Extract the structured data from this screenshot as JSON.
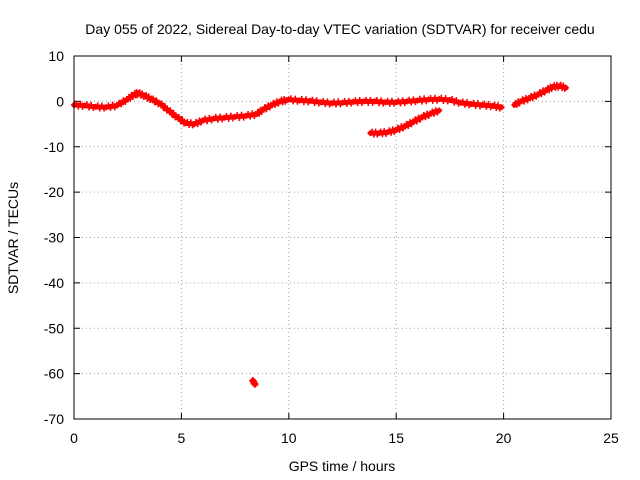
{
  "chart_data": {
    "type": "scatter",
    "title": "Day 055 of 2022, Sidereal Day-to-day VTEC variation (SDTVAR) for receiver cedu",
    "xlabel": "GPS time / hours",
    "ylabel": "SDTVAR / TECUs",
    "xlim": [
      0,
      25
    ],
    "ylim": [
      -70,
      10
    ],
    "xticks": [
      0,
      5,
      10,
      15,
      20,
      25
    ],
    "yticks": [
      10,
      0,
      -10,
      -20,
      -30,
      -40,
      -50,
      -60,
      -70
    ],
    "grid": true,
    "marker": "plus",
    "color": "#ff0000",
    "series": [
      {
        "name": "segment-1",
        "x": [
          0,
          0.5,
          1.0,
          1.5,
          2.0,
          2.5,
          2.8,
          3.0,
          3.3,
          3.6,
          4.0,
          4.4,
          4.8,
          5.2,
          5.6,
          6.0,
          6.5,
          7.0,
          7.5,
          8.0,
          8.5,
          8.8,
          9.2,
          9.6,
          9.9
        ],
        "y": [
          -0.8,
          -0.9,
          -1.2,
          -1.3,
          -0.9,
          0.5,
          1.5,
          1.8,
          1.2,
          0.5,
          -0.5,
          -2,
          -3.5,
          -4.8,
          -5,
          -4.2,
          -3.8,
          -3.6,
          -3.4,
          -3.2,
          -2.8,
          -1.8,
          -0.8,
          0,
          0.3
        ]
      },
      {
        "name": "segment-2",
        "x": [
          10,
          10.5,
          11,
          11.5,
          12,
          12.5,
          13,
          13.5,
          14,
          14.5,
          15,
          15.5,
          16,
          16.5,
          17,
          17.5,
          18,
          18.5,
          19,
          19.5,
          19.9
        ],
        "y": [
          0.4,
          0.2,
          0.1,
          -0.2,
          -0.4,
          -0.3,
          -0.1,
          0,
          0,
          -0.2,
          -0.2,
          0,
          0.2,
          0.4,
          0.5,
          0.3,
          -0.3,
          -0.6,
          -0.8,
          -1,
          -1.3
        ]
      },
      {
        "name": "segment-3",
        "x": [
          13.8,
          14.2,
          14.6,
          15.0,
          15.4,
          15.8,
          16.2,
          16.6,
          17.0
        ],
        "y": [
          -7,
          -7,
          -6.8,
          -6.3,
          -5.5,
          -4.5,
          -3.5,
          -2.7,
          -2
        ]
      },
      {
        "name": "segment-4",
        "x": [
          20.5,
          20.8,
          21.2,
          21.6,
          22.0,
          22.3,
          22.6,
          22.9
        ],
        "y": [
          -0.8,
          0,
          0.7,
          1.5,
          2.5,
          3.2,
          3.4,
          3
        ]
      },
      {
        "name": "outlier",
        "x": [
          8.3,
          8.45
        ],
        "y": [
          -61.6,
          -62.3
        ]
      }
    ]
  }
}
